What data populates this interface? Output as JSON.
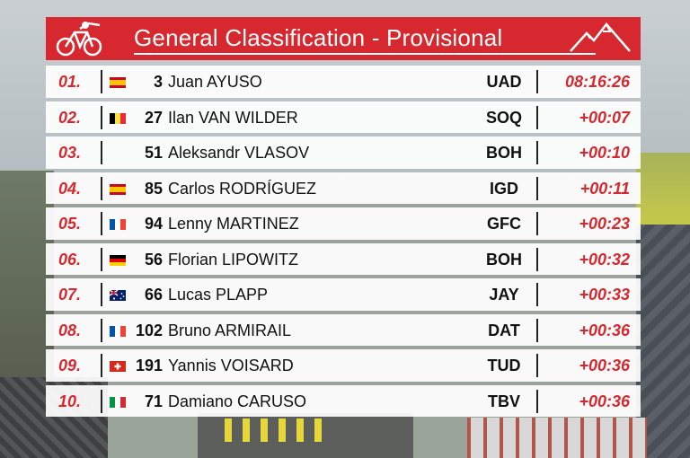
{
  "header": {
    "title": "General Classification - Provisional"
  },
  "rows": [
    {
      "pos": "01.",
      "flag": "flag-spain",
      "bib": "3",
      "name": "Juan AYUSO",
      "team": "UAD",
      "time": "08:16:26"
    },
    {
      "pos": "02.",
      "flag": "flag-belgium",
      "bib": "27",
      "name": "Ilan VAN WILDER",
      "team": "SOQ",
      "time": "+00:07"
    },
    {
      "pos": "03.",
      "flag": "none",
      "bib": "51",
      "name": "Aleksandr VLASOV",
      "team": "BOH",
      "time": "+00:10"
    },
    {
      "pos": "04.",
      "flag": "flag-spain",
      "bib": "85",
      "name": "Carlos RODRÍGUEZ",
      "team": "IGD",
      "time": "+00:11"
    },
    {
      "pos": "05.",
      "flag": "flag-france",
      "bib": "94",
      "name": "Lenny MARTINEZ",
      "team": "GFC",
      "time": "+00:23"
    },
    {
      "pos": "06.",
      "flag": "flag-germany",
      "bib": "56",
      "name": "Florian LIPOWITZ",
      "team": "BOH",
      "time": "+00:32"
    },
    {
      "pos": "07.",
      "flag": "flag-australia",
      "bib": "66",
      "name": "Lucas PLAPP",
      "team": "JAY",
      "time": "+00:33"
    },
    {
      "pos": "08.",
      "flag": "flag-france",
      "bib": "102",
      "name": "Bruno ARMIRAIL",
      "team": "DAT",
      "time": "+00:36"
    },
    {
      "pos": "09.",
      "flag": "flag-switzerland",
      "bib": "191",
      "name": "Yannis VOISARD",
      "team": "TUD",
      "time": "+00:36"
    },
    {
      "pos": "10.",
      "flag": "flag-italy",
      "bib": "71",
      "name": "Damiano CARUSO",
      "team": "TBV",
      "time": "+00:36"
    }
  ],
  "colors": {
    "accent": "#d7282f",
    "row_bg": "#ffffff",
    "text": "#111111"
  }
}
